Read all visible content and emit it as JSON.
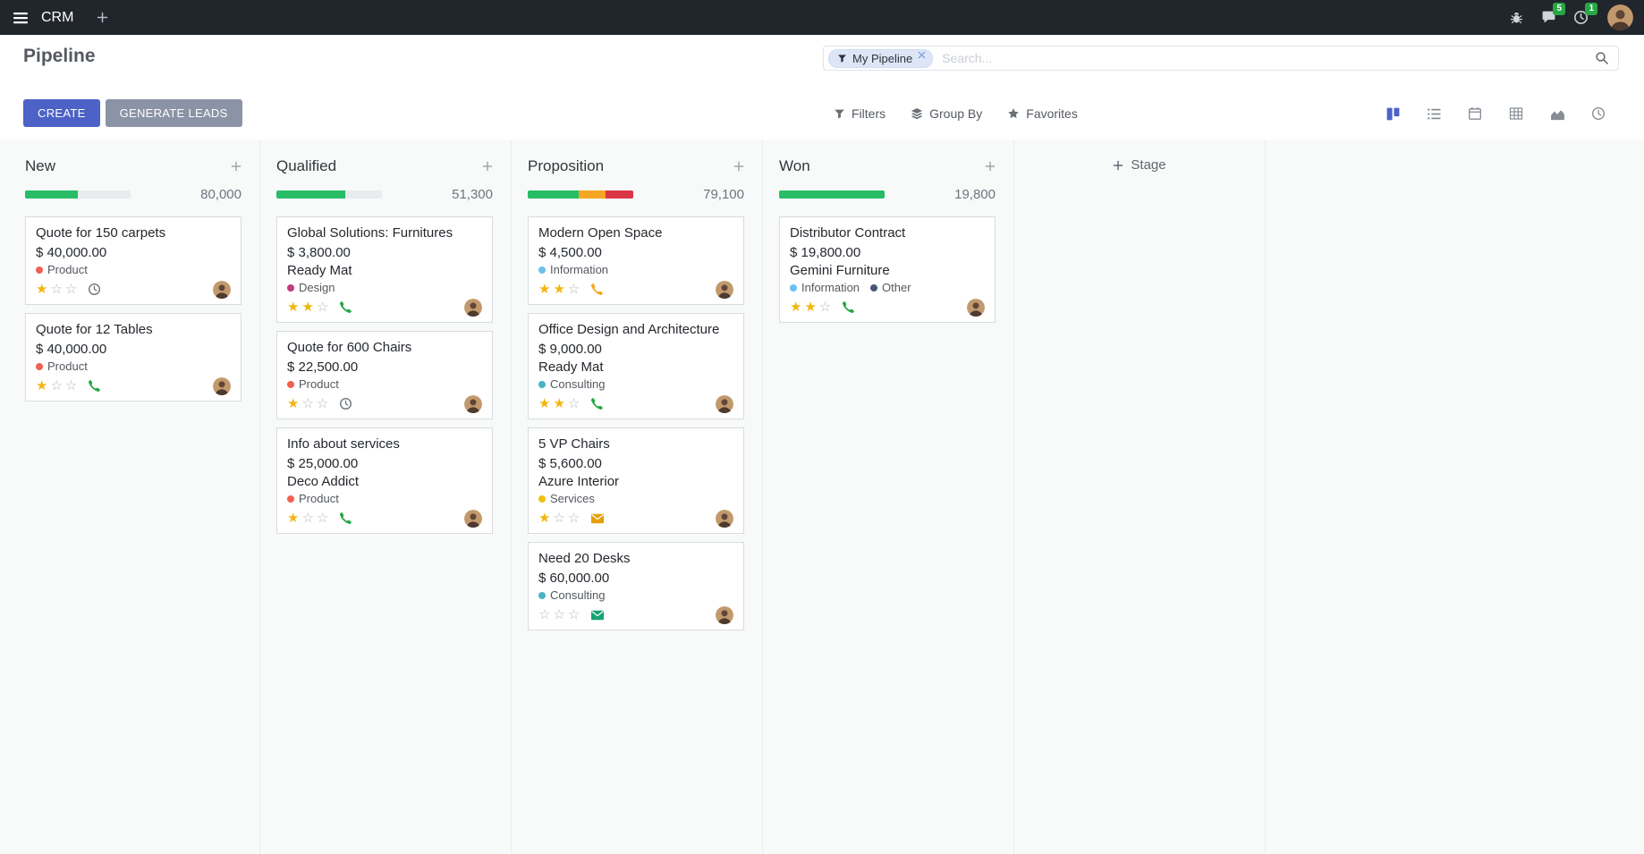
{
  "topbar": {
    "app_name": "CRM",
    "messages_badge": "5",
    "activities_badge": "1"
  },
  "control_panel": {
    "title": "Pipeline",
    "create_label": "CREATE",
    "generate_leads_label": "GENERATE LEADS",
    "filters_label": "Filters",
    "group_by_label": "Group By",
    "favorites_label": "Favorites",
    "search": {
      "facet_label": "My Pipeline",
      "placeholder": "Search..."
    }
  },
  "board": {
    "add_stage_label": "Stage",
    "columns": [
      {
        "name": "New",
        "count": "80,000",
        "progress": [
          {
            "pct": 50,
            "color": "#26bd66"
          }
        ],
        "cards": [
          {
            "title": "Quote for 150 carpets",
            "amount": "$ 40,000.00",
            "tags": [
              {
                "label": "Product",
                "color": "#f06050"
              }
            ],
            "stars": 1,
            "activity": {
              "icon": "clock",
              "color": "#6f767e"
            }
          },
          {
            "title": "Quote for 12 Tables",
            "amount": "$ 40,000.00",
            "tags": [
              {
                "label": "Product",
                "color": "#f06050"
              }
            ],
            "stars": 1,
            "activity": {
              "icon": "phone",
              "color": "#28a745"
            }
          }
        ]
      },
      {
        "name": "Qualified",
        "count": "51,300",
        "progress": [
          {
            "pct": 65,
            "color": "#26bd66"
          }
        ],
        "cards": [
          {
            "title": "Global Solutions: Furnitures",
            "amount": "$ 3,800.00",
            "company": "Ready Mat",
            "tags": [
              {
                "label": "Design",
                "color": "#c13a83"
              }
            ],
            "stars": 2,
            "activity": {
              "icon": "phone",
              "color": "#28a745"
            }
          },
          {
            "title": "Quote for 600 Chairs",
            "amount": "$ 22,500.00",
            "tags": [
              {
                "label": "Product",
                "color": "#f06050"
              }
            ],
            "stars": 1,
            "activity": {
              "icon": "clock",
              "color": "#6f767e"
            }
          },
          {
            "title": "Info about services",
            "amount": "$ 25,000.00",
            "company": "Deco Addict",
            "tags": [
              {
                "label": "Product",
                "color": "#f06050"
              }
            ],
            "stars": 1,
            "activity": {
              "icon": "phone",
              "color": "#28a745"
            }
          }
        ]
      },
      {
        "name": "Proposition",
        "count": "79,100",
        "progress": [
          {
            "pct": 48,
            "color": "#26bd66"
          },
          {
            "pct": 26,
            "color": "#f5a623"
          },
          {
            "pct": 26,
            "color": "#dc3545"
          }
        ],
        "cards": [
          {
            "title": "Modern Open Space",
            "amount": "$ 4,500.00",
            "tags": [
              {
                "label": "Information",
                "color": "#6cc1ed"
              }
            ],
            "stars": 2,
            "activity": {
              "icon": "phone",
              "color": "#f5a623"
            }
          },
          {
            "title": "Office Design and Architecture",
            "amount": "$ 9,000.00",
            "company": "Ready Mat",
            "tags": [
              {
                "label": "Consulting",
                "color": "#47b4c4"
              }
            ],
            "stars": 2,
            "activity": {
              "icon": "phone",
              "color": "#28a745"
            }
          },
          {
            "title": "5 VP Chairs",
            "amount": "$ 5,600.00",
            "company": "Azure Interior",
            "tags": [
              {
                "label": "Services",
                "color": "#eec20f"
              }
            ],
            "stars": 1,
            "activity": {
              "icon": "envelope",
              "color": "#e3a008"
            }
          },
          {
            "title": "Need 20 Desks",
            "amount": "$ 60,000.00",
            "tags": [
              {
                "label": "Consulting",
                "color": "#47b4c4"
              }
            ],
            "stars": 0,
            "activity": {
              "icon": "envelope",
              "color": "#17a277"
            }
          }
        ]
      },
      {
        "name": "Won",
        "count": "19,800",
        "progress": [
          {
            "pct": 100,
            "color": "#26bd66"
          }
        ],
        "cards": [
          {
            "title": "Distributor Contract",
            "amount": "$ 19,800.00",
            "company": "Gemini Furniture",
            "tags": [
              {
                "label": "Information",
                "color": "#6cc1ed"
              },
              {
                "label": "Other",
                "color": "#475577"
              }
            ],
            "stars": 2,
            "activity": {
              "icon": "phone",
              "color": "#28a745"
            }
          }
        ]
      }
    ]
  }
}
